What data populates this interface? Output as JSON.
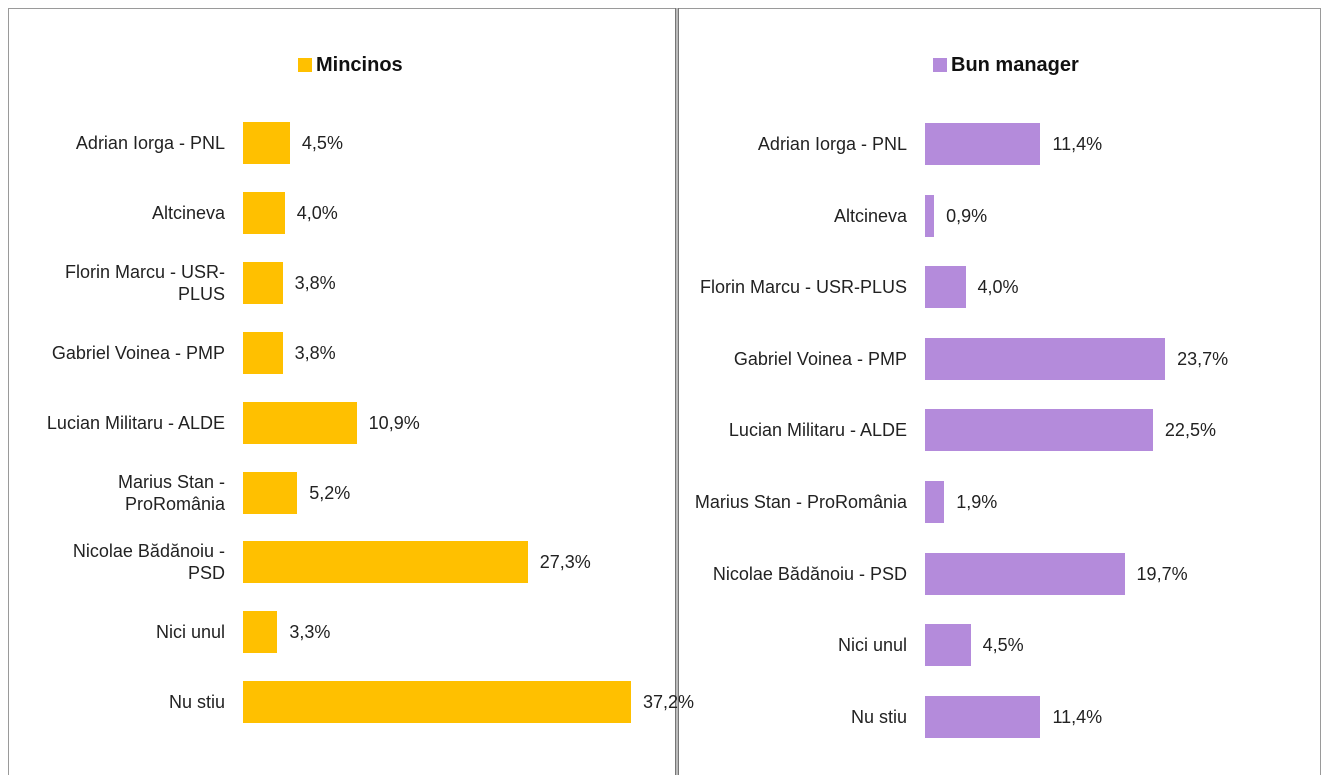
{
  "chart_data": [
    {
      "type": "bar",
      "orientation": "horizontal",
      "categories": [
        "Adrian Iorga - PNL",
        "Altcineva",
        "Florin Marcu - USR-PLUS",
        "Gabriel Voinea - PMP",
        "Lucian Militaru - ALDE",
        "Marius Stan - ProRomânia",
        "Nicolae Bădănoiu - PSD",
        "Nici unul",
        "Nu stiu"
      ],
      "series": [
        {
          "name": "Mincinos",
          "color": "#ffc000",
          "values": [
            4.5,
            4.0,
            3.8,
            3.8,
            10.9,
            5.2,
            27.3,
            3.3,
            37.2
          ],
          "value_labels": [
            "4,5%",
            "4,0%",
            "3,8%",
            "3,8%",
            "10,9%",
            "5,2%",
            "27,3%",
            "3,3%",
            "37,2%"
          ]
        }
      ],
      "legend": "top"
    },
    {
      "type": "bar",
      "orientation": "horizontal",
      "categories": [
        "Adrian Iorga - PNL",
        "Altcineva",
        "Florin Marcu - USR-PLUS",
        "Gabriel Voinea - PMP",
        "Lucian Militaru - ALDE",
        "Marius Stan - ProRomânia",
        "Nicolae Bădănoiu - PSD",
        "Nici unul",
        "Nu stiu"
      ],
      "series": [
        {
          "name": "Bun manager",
          "color": "#b48bdb",
          "values": [
            11.4,
            0.9,
            4.0,
            23.7,
            22.5,
            1.9,
            19.7,
            4.5,
            11.4
          ],
          "value_labels": [
            "11,4%",
            "0,9%",
            "4,0%",
            "23,7%",
            "22,5%",
            "1,9%",
            "19,7%",
            "4,5%",
            "11,4%"
          ]
        }
      ],
      "legend": "top"
    }
  ]
}
